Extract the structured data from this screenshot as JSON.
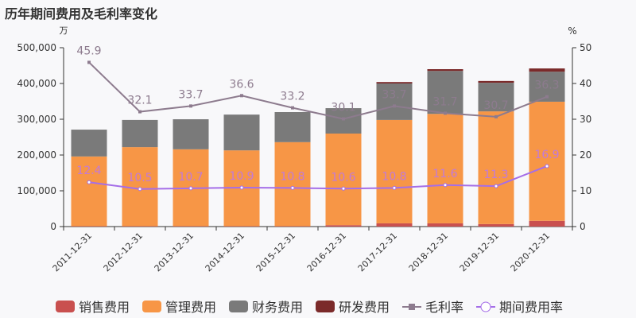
{
  "chart_data": {
    "type": "bar",
    "title": "历年期间费用及毛利率变化",
    "left_unit": "万",
    "right_unit": "%",
    "categories": [
      "2011-12-31",
      "2012-12-31",
      "2013-12-31",
      "2014-12-31",
      "2015-12-31",
      "2016-12-31",
      "2017-12-31",
      "2018-12-31",
      "2019-12-31",
      "2020-12-31"
    ],
    "ylim_left": [
      0,
      500000
    ],
    "ylim_right": [
      0,
      50
    ],
    "left_ticks": [
      "0",
      "100,000",
      "200,000",
      "300,000",
      "400,000",
      "500,000"
    ],
    "right_ticks": [
      "0",
      "10",
      "20",
      "30",
      "40",
      "50"
    ],
    "series": [
      {
        "name": "销售费用",
        "type": "stacked-bar",
        "color": "#c9504f",
        "values": [
          1000,
          1000,
          1000,
          1000,
          1000,
          4000,
          9000,
          9000,
          7000,
          16000
        ]
      },
      {
        "name": "管理费用",
        "type": "stacked-bar",
        "color": "#f79646",
        "values": [
          195000,
          221000,
          215000,
          212000,
          235000,
          256000,
          289000,
          306000,
          315000,
          333000
        ]
      },
      {
        "name": "财务费用",
        "type": "stacked-bar",
        "color": "#7a7a7a",
        "values": [
          75000,
          76000,
          84000,
          100000,
          84000,
          71000,
          102000,
          120000,
          80000,
          84000
        ]
      },
      {
        "name": "研发费用",
        "type": "stacked-bar",
        "color": "#7b2a2a",
        "values": [
          0,
          0,
          0,
          0,
          0,
          0,
          4000,
          5000,
          5000,
          9000
        ]
      },
      {
        "name": "毛利率",
        "type": "line",
        "axis": "right",
        "color": "#8d7b8e",
        "values": [
          45.9,
          32.1,
          33.7,
          36.6,
          33.2,
          30.1,
          33.7,
          31.7,
          30.7,
          36.3
        ]
      },
      {
        "name": "期间费用率",
        "type": "line",
        "axis": "right",
        "color": "#a56ee8",
        "values": [
          12.4,
          10.5,
          10.7,
          10.9,
          10.8,
          10.6,
          10.8,
          11.6,
          11.3,
          16.9
        ]
      }
    ],
    "legend_placement": "bottom"
  }
}
